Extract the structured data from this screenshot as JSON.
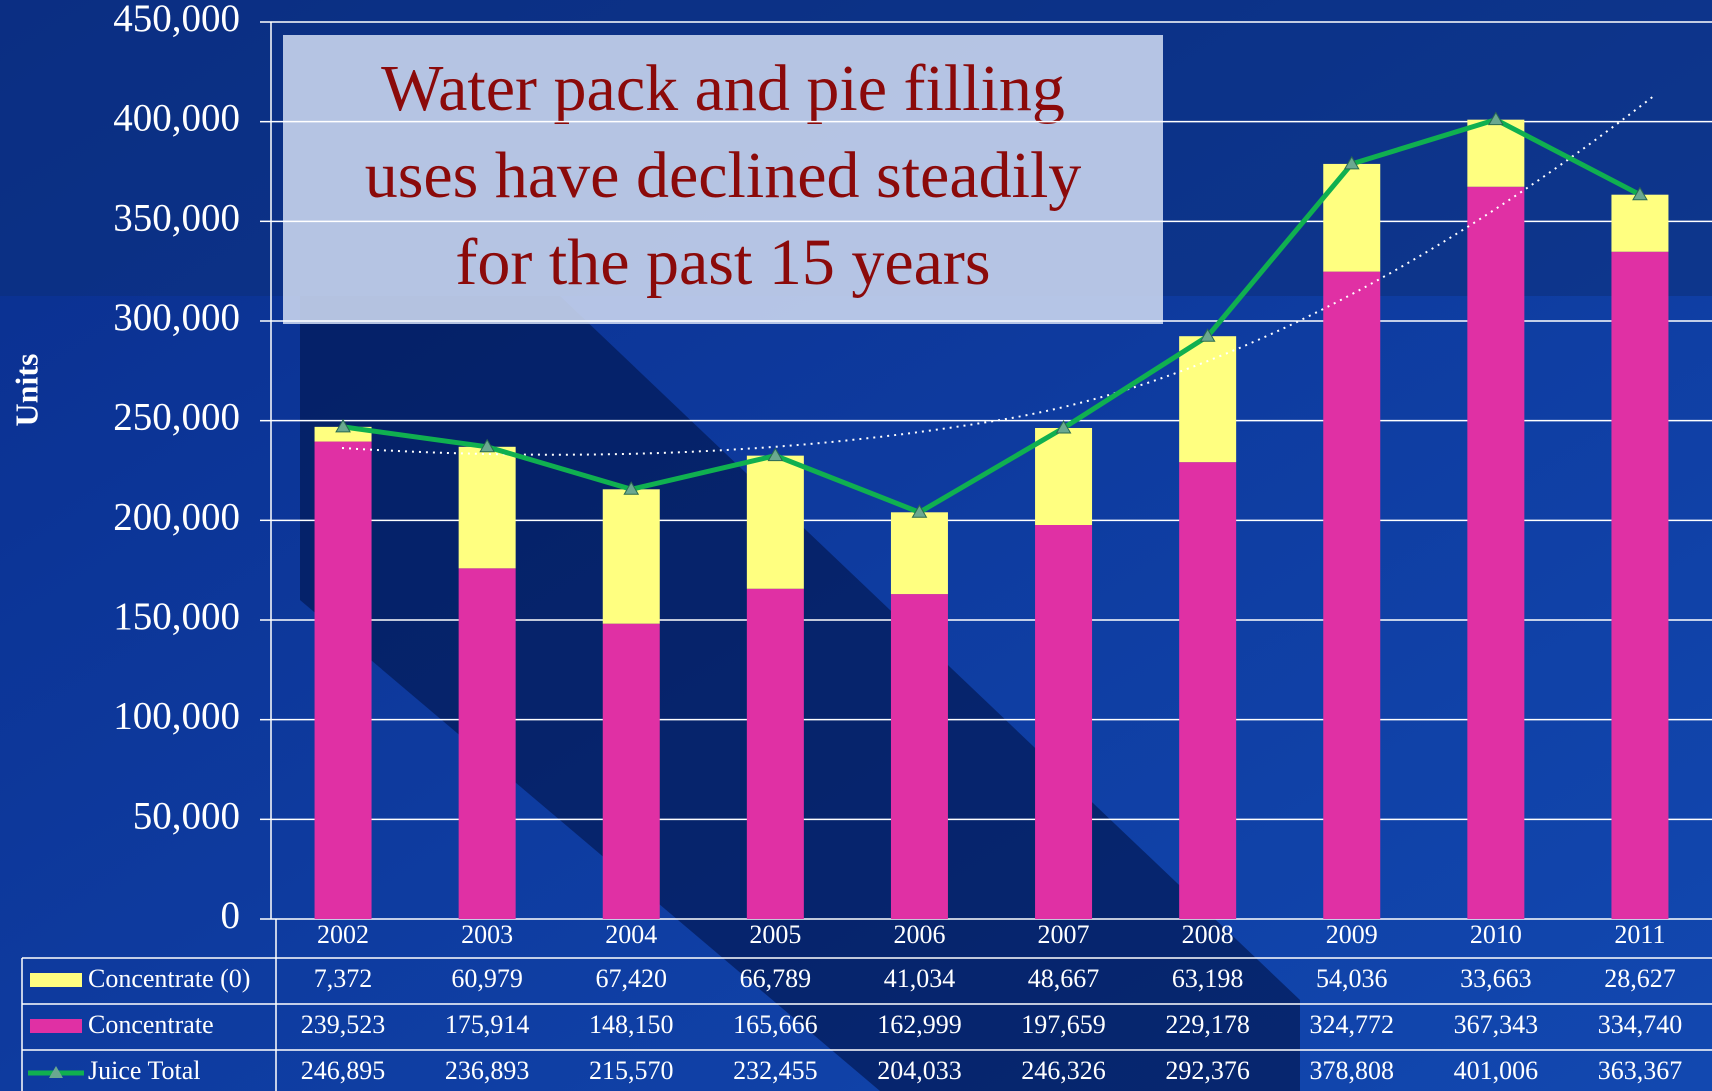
{
  "chart_data": {
    "type": "bar",
    "stacked": true,
    "annotation": [
      "Water pack and pie filling",
      "uses have declined steadily",
      "for the past 15 years"
    ],
    "ylabel": "Units",
    "categories": [
      "2002",
      "2003",
      "2004",
      "2005",
      "2006",
      "2007",
      "2008",
      "2009",
      "2010",
      "2011"
    ],
    "series": [
      {
        "name": "Concentrate",
        "type": "bar",
        "color": "#e030a4",
        "values": [
          239523,
          175914,
          148150,
          165666,
          162999,
          197659,
          229178,
          324772,
          367343,
          334740
        ],
        "value_labels": [
          "239,523",
          "175,914",
          "148,150",
          "165,666",
          "162,999",
          "197,659",
          "229,178",
          "324,772",
          "367,343",
          "334,740"
        ]
      },
      {
        "name": "Concentrate (0)",
        "type": "bar",
        "color": "#ffff80",
        "values": [
          7372,
          60979,
          67420,
          66789,
          41034,
          48667,
          63198,
          54036,
          33663,
          28627
        ],
        "value_labels": [
          "7,372",
          "60,979",
          "67,420",
          "66,789",
          "41,034",
          "48,667",
          "63,198",
          "54,036",
          "33,663",
          "28,627"
        ]
      },
      {
        "name": "Juice Total",
        "type": "line",
        "color": "#10b050",
        "values": [
          246895,
          236893,
          215570,
          232455,
          204033,
          246326,
          292376,
          378808,
          401006,
          363367
        ],
        "value_labels": [
          "246,895",
          "236,893",
          "215,570",
          "232,455",
          "204,033",
          "246,326",
          "292,376",
          "378,808",
          "401,006",
          "363,367"
        ]
      }
    ],
    "ylim": [
      0,
      450000
    ],
    "yticks": [
      0,
      {
        "value": 50000,
        "label": "50,000"
      },
      {
        "value": 100000,
        "label": "100,000"
      },
      {
        "value": 150000,
        "label": "150,000"
      },
      {
        "value": 200000,
        "label": "200,000"
      },
      {
        "value": 250000,
        "label": "250,000"
      },
      {
        "value": 300000,
        "label": "300,000"
      },
      {
        "value": 350000,
        "label": "350,000"
      },
      {
        "value": 400000,
        "label": "400,000"
      },
      {
        "value": 450000,
        "label": "450,000"
      }
    ],
    "grid": true
  }
}
